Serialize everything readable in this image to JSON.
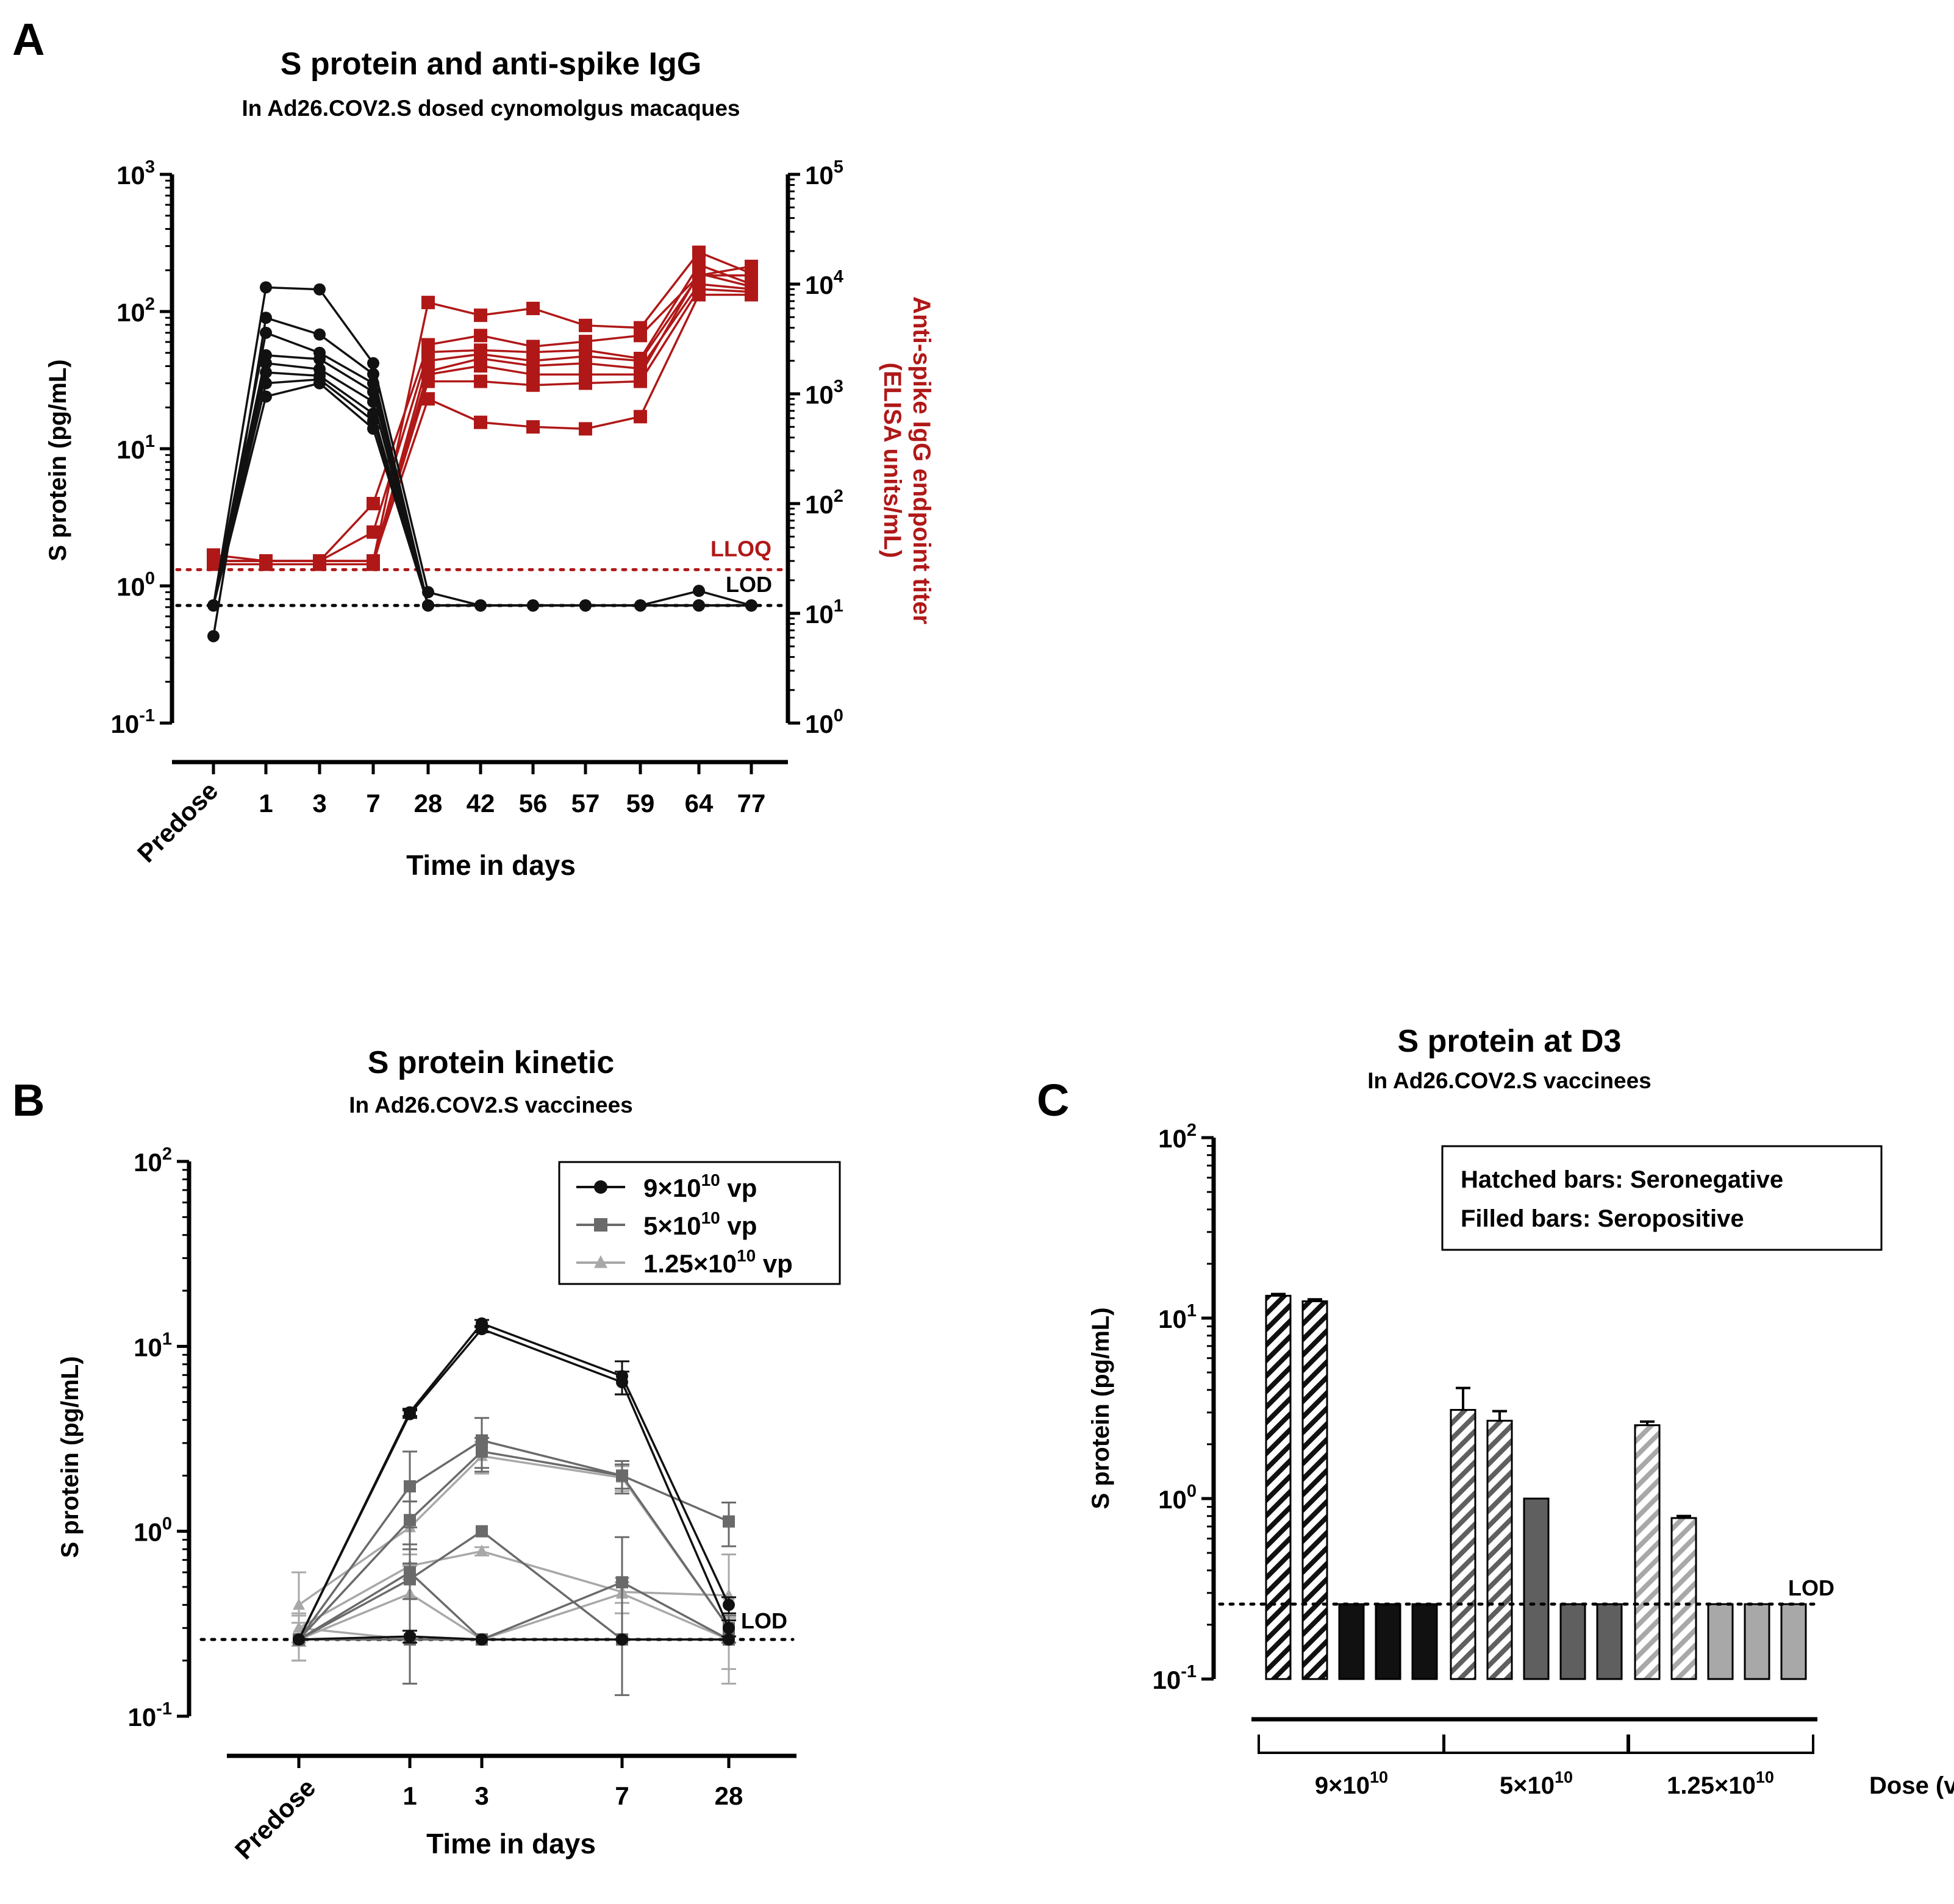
{
  "figure": {
    "panel_labels": [
      "A",
      "B",
      "C"
    ]
  },
  "chart_data": [
    {
      "id": "A",
      "type": "line",
      "title": "S protein and anti-spike IgG",
      "subtitle": "In Ad26.COV2.S dosed cynomolgus macaques",
      "xlabel": "Time in days",
      "ylabel": "S protein (pg/mL)",
      "ylabel_right_line1": "Anti-spike IgG endpoint titer",
      "ylabel_right_line2": "(ELISA units/mL)",
      "categories": [
        "Predose",
        "1",
        "3",
        "7",
        "28",
        "42",
        "56",
        "57",
        "59",
        "64",
        "77"
      ],
      "yscale": "log10",
      "ylim": [
        0.1,
        1000
      ],
      "yticks": [
        {
          "base": "10",
          "exp": "-1"
        },
        {
          "base": "10",
          "exp": "0"
        },
        {
          "base": "10",
          "exp": "1"
        },
        {
          "base": "10",
          "exp": "2"
        },
        {
          "base": "10",
          "exp": "3"
        }
      ],
      "y2scale": "log10",
      "y2lim": [
        1,
        100000
      ],
      "y2ticks": [
        {
          "base": "10",
          "exp": "0"
        },
        {
          "base": "10",
          "exp": "1"
        },
        {
          "base": "10",
          "exp": "2"
        },
        {
          "base": "10",
          "exp": "3"
        },
        {
          "base": "10",
          "exp": "4"
        },
        {
          "base": "10",
          "exp": "5"
        }
      ],
      "lod": {
        "value": 0.72,
        "label": "LOD"
      },
      "lloq": {
        "value_right": 25,
        "label": "LLOQ"
      },
      "colors": {
        "s_protein": "#111111",
        "igg": "#b01818"
      },
      "series_left": [
        {
          "name": "S protein animal 1",
          "values": [
            0.72,
            150,
            145,
            42,
            0.9,
            0.72,
            0.72,
            0.72,
            0.72,
            0.92,
            0.72
          ]
        },
        {
          "name": "S protein animal 2",
          "values": [
            0.43,
            90,
            68,
            35,
            0.72,
            0.72,
            0.72,
            0.72,
            0.72,
            0.72,
            0.72
          ]
        },
        {
          "name": "S protein animal 3",
          "values": [
            0.72,
            70,
            50,
            30,
            0.72,
            0.72,
            0.72,
            0.72,
            0.72,
            0.72,
            0.72
          ]
        },
        {
          "name": "S protein animal 4",
          "values": [
            0.72,
            48,
            45,
            26,
            0.72,
            0.72,
            0.72,
            0.72,
            0.72,
            0.72,
            0.72
          ]
        },
        {
          "name": "S protein animal 5",
          "values": [
            0.72,
            42,
            38,
            22,
            0.72,
            0.72,
            0.72,
            0.72,
            0.72,
            0.72,
            0.72
          ]
        },
        {
          "name": "S protein animal 6",
          "values": [
            0.72,
            36,
            34,
            18,
            0.72,
            0.72,
            0.72,
            0.72,
            0.72,
            0.72,
            0.72
          ]
        },
        {
          "name": "S protein animal 7",
          "values": [
            0.72,
            30,
            32,
            16,
            0.72,
            0.72,
            0.72,
            0.72,
            0.72,
            0.72,
            0.72
          ]
        },
        {
          "name": "S protein animal 8",
          "values": [
            0.72,
            24,
            30,
            14,
            0.72,
            0.72,
            0.72,
            0.72,
            0.72,
            0.72,
            0.72
          ]
        }
      ],
      "series_right": [
        {
          "name": "IgG animal 1",
          "values": [
            34,
            30,
            30,
            30,
            6800,
            5200,
            6000,
            4200,
            4000,
            19500,
            12500
          ]
        },
        {
          "name": "IgG animal 2",
          "values": [
            30,
            30,
            30,
            100,
            2800,
            3400,
            2700,
            3000,
            3400,
            12000,
            14500
          ]
        },
        {
          "name": "IgG animal 3",
          "values": [
            30,
            30,
            30,
            55,
            2400,
            2500,
            2400,
            2500,
            2100,
            15000,
            10000
          ]
        },
        {
          "name": "IgG animal 4",
          "values": [
            30,
            30,
            30,
            30,
            2000,
            2300,
            2000,
            2200,
            2000,
            12000,
            12000
          ]
        },
        {
          "name": "IgG animal 5",
          "values": [
            30,
            30,
            30,
            30,
            1600,
            2100,
            1800,
            1900,
            1700,
            10000,
            9000
          ]
        },
        {
          "name": "IgG animal 6",
          "values": [
            30,
            30,
            30,
            30,
            1300,
            1300,
            1200,
            1250,
            1300,
            9000,
            8500
          ]
        },
        {
          "name": "IgG animal 7",
          "values": [
            30,
            30,
            30,
            30,
            900,
            550,
            500,
            480,
            620,
            8000,
            8000
          ]
        },
        {
          "name": "IgG animal 8",
          "values": [
            28,
            28,
            28,
            28,
            1500,
            1800,
            1500,
            1500,
            1500,
            12500,
            9500
          ]
        }
      ]
    },
    {
      "id": "B",
      "type": "line",
      "title": "S protein kinetic",
      "subtitle": "In Ad26.COV2.S vaccinees",
      "xlabel": "Time in days",
      "ylabel": "S protein (pg/mL)",
      "categories": [
        "Predose",
        "1",
        "3",
        "7",
        "28"
      ],
      "yscale": "log10",
      "ylim": [
        0.1,
        100
      ],
      "yticks": [
        {
          "base": "10",
          "exp": "-1"
        },
        {
          "base": "10",
          "exp": "0"
        },
        {
          "base": "10",
          "exp": "1"
        },
        {
          "base": "10",
          "exp": "2"
        }
      ],
      "lod": {
        "value": 0.26,
        "label": "LOD"
      },
      "legend_position": "top-right",
      "legend": [
        {
          "pre": "9×10",
          "exp": "10",
          "post": " vp",
          "marker": "circle",
          "color": "#111111"
        },
        {
          "pre": "5×10",
          "exp": "10",
          "post": " vp",
          "marker": "square",
          "color": "#6a6a6a"
        },
        {
          "pre": "1.25×10",
          "exp": "10",
          "post": " vp",
          "marker": "triangle",
          "color": "#a8a8a8"
        }
      ],
      "series": [
        {
          "name": "9e10 participant 1",
          "group": 0,
          "values": [
            0.26,
            4.4,
            13.3,
            6.9,
            0.4
          ],
          "err": [
            0.0,
            0.2,
            0.6,
            1.4,
            0.04
          ]
        },
        {
          "name": "9e10 participant 2",
          "group": 0,
          "values": [
            0.26,
            4.3,
            12.4,
            6.4,
            0.3
          ],
          "err": [
            0.0,
            0.2,
            0.5,
            0.9,
            0.03
          ]
        },
        {
          "name": "9e10 participant 3",
          "group": 0,
          "values": [
            0.26,
            0.27,
            0.26,
            0.26,
            0.26
          ],
          "err": [
            0.0,
            0.02,
            0.0,
            0.0,
            0.0
          ]
        },
        {
          "name": "5e10 participant 1",
          "group": 1,
          "values": [
            0.26,
            1.75,
            3.1,
            2.0,
            1.13
          ],
          "err": [
            0.0,
            0.95,
            1.0,
            0.4,
            0.3
          ]
        },
        {
          "name": "5e10 participant 2",
          "group": 1,
          "values": [
            0.26,
            1.15,
            2.7,
            2.0,
            0.3
          ],
          "err": [
            0.0,
            0.3,
            0.5,
            0.3,
            0.05
          ]
        },
        {
          "name": "5e10 participant 3",
          "group": 1,
          "values": [
            0.26,
            0.55,
            1.0,
            0.26,
            0.26
          ],
          "err": [
            0.0,
            0.12,
            0.0,
            0.0,
            0.0
          ]
        },
        {
          "name": "5e10 participant 4",
          "group": 1,
          "values": [
            0.26,
            0.6,
            0.26,
            0.53,
            0.26
          ],
          "err": [
            0.0,
            0.45,
            0.0,
            0.4,
            0.0
          ]
        },
        {
          "name": "5e10 participant 5",
          "group": 1,
          "values": [
            0.26,
            0.26,
            0.26,
            0.26,
            0.26
          ],
          "err": [
            0.0,
            0.0,
            0.0,
            0.0,
            0.0
          ]
        },
        {
          "name": "1.25e10 participant 1",
          "group": 2,
          "values": [
            0.4,
            1.05,
            2.55,
            1.95,
            0.3
          ],
          "err": [
            0.2,
            0.4,
            0.5,
            0.3,
            0.05
          ]
        },
        {
          "name": "1.25e10 participant 2",
          "group": 2,
          "values": [
            0.3,
            0.65,
            0.78,
            0.47,
            0.45
          ],
          "err": [
            0.06,
            0.1,
            0.04,
            0.06,
            0.3
          ]
        },
        {
          "name": "1.25e10 participant 3",
          "group": 2,
          "values": [
            0.26,
            0.46,
            0.26,
            0.46,
            0.26
          ],
          "err": [
            0.06,
            0.2,
            0.0,
            0.1,
            0.08
          ]
        },
        {
          "name": "1.25e10 participant 4",
          "group": 2,
          "values": [
            0.3,
            0.26,
            0.26,
            0.26,
            0.26
          ],
          "err": [
            0.05,
            0.0,
            0.0,
            0.0,
            0.0
          ]
        }
      ]
    },
    {
      "id": "C",
      "type": "bar",
      "title": "S protein at D3",
      "subtitle": "In Ad26.COV2.S vaccinees",
      "ylabel": "S protein (pg/mL)",
      "xlabel": "Dose (vp)",
      "yscale": "log10",
      "ylim": [
        0.1,
        100
      ],
      "yticks": [
        {
          "base": "10",
          "exp": "-1"
        },
        {
          "base": "10",
          "exp": "0"
        },
        {
          "base": "10",
          "exp": "1"
        },
        {
          "base": "10",
          "exp": "2"
        }
      ],
      "lod": {
        "value": 0.26,
        "label": "LOD"
      },
      "legend_lines": [
        "Hatched bars: Seronegative",
        "Filled bars: Seropositive"
      ],
      "groups": [
        {
          "pre": "9×10",
          "exp": "10",
          "color": "#111111",
          "bars": [
            {
              "value": 13.3,
              "err": 0.3,
              "hatched": true
            },
            {
              "value": 12.4,
              "err": 0.3,
              "hatched": true
            },
            {
              "value": 0.26,
              "err": 0,
              "hatched": false
            },
            {
              "value": 0.26,
              "err": 0,
              "hatched": false
            },
            {
              "value": 0.26,
              "err": 0,
              "hatched": false
            }
          ]
        },
        {
          "pre": "5×10",
          "exp": "10",
          "color": "#5f5f5f",
          "bars": [
            {
              "value": 3.1,
              "err": 1.0,
              "hatched": true
            },
            {
              "value": 2.7,
              "err": 0.35,
              "hatched": true
            },
            {
              "value": 1.0,
              "err": 0,
              "hatched": false
            },
            {
              "value": 0.26,
              "err": 0,
              "hatched": false
            },
            {
              "value": 0.26,
              "err": 0,
              "hatched": false
            }
          ]
        },
        {
          "pre": "1.25×10",
          "exp": "10",
          "color": "#a8a8a8",
          "bars": [
            {
              "value": 2.55,
              "err": 0.12,
              "hatched": true
            },
            {
              "value": 0.78,
              "err": 0.02,
              "hatched": true
            },
            {
              "value": 0.26,
              "err": 0,
              "hatched": false
            },
            {
              "value": 0.26,
              "err": 0,
              "hatched": false
            },
            {
              "value": 0.26,
              "err": 0,
              "hatched": false
            }
          ]
        }
      ]
    }
  ]
}
